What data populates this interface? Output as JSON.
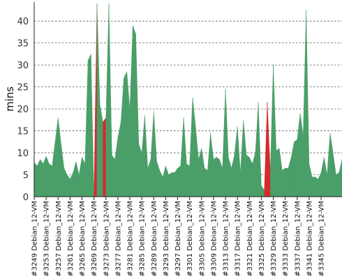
{
  "chart_data": {
    "type": "area",
    "ylabel": "mins",
    "ylim": [
      0,
      44
    ],
    "yticks": [
      0,
      5,
      10,
      15,
      20,
      25,
      30,
      35,
      40
    ],
    "grid": true,
    "colors": {
      "success": "#4a9e68",
      "failure": "#d62b2b"
    },
    "x_labels": [
      "#3249 Debian_12-VM",
      "#3253 Debian_12-VM",
      "#3257 Debian_12-VM",
      "#3261 Debian_12-VM",
      "#3265 Debian_12-VM",
      "#3269 Debian_12-VM",
      "#3273 Debian_12-VM",
      "#3277 Debian_12-VM",
      "#3281 Debian_12-VM",
      "#3285 Debian_12-VM",
      "#3289 Debian_12-VM",
      "#3293 Debian_12-VM",
      "#3297 Debian_12-VM",
      "#3301 Debian_12-VM",
      "#3305 Debian_12-VM",
      "#3309 Debian_12-VM",
      "#3313 Debian_12-VM",
      "#3317 Debian_12-VM",
      "#3321 Debian_12-VM",
      "#3325 Debian_12-VM",
      "#3329 Debian_12-VM",
      "#3333 Debian_12-VM",
      "#3337 Debian_12-VM",
      "#3341 Debian_12-VM",
      "#3345 Debian_12-VM"
    ],
    "x_start": 3249,
    "values": [
      7.8,
      7.0,
      8.5,
      7.5,
      9.2,
      7.5,
      7.0,
      12.5,
      18.0,
      12.0,
      6.5,
      5.0,
      4.0,
      5.5,
      8.0,
      5.0,
      9.0,
      7.5,
      31.0,
      32.5,
      0.5,
      50.0,
      21.0,
      17.0,
      18.0,
      50.0,
      9.5,
      8.5,
      13.5,
      17.0,
      27.0,
      28.5,
      20.0,
      39.0,
      37.0,
      12.0,
      10.0,
      18.5,
      6.5,
      8.5,
      19.5,
      8.0,
      6.0,
      4.5,
      7.0,
      5.0,
      5.5,
      5.5,
      6.5,
      7.0,
      18.0,
      7.5,
      7.0,
      22.5,
      16.0,
      8.5,
      11.0,
      6.5,
      6.0,
      14.5,
      8.5,
      9.0,
      8.5,
      6.5,
      24.5,
      9.0,
      6.5,
      9.5,
      16.0,
      5.5,
      17.5,
      9.5,
      9.0,
      7.5,
      10.0,
      21.5,
      2.5,
      1.5,
      21.5,
      6.0,
      30.0,
      10.5,
      11.0,
      6.0,
      6.5,
      6.5,
      9.0,
      12.5,
      13.0,
      19.0,
      14.0,
      42.5,
      7.5,
      4.5,
      4.5,
      4.0,
      5.5,
      9.0,
      5.0,
      14.5,
      10.0,
      5.0,
      5.5,
      8.5
    ],
    "failed_builds": [
      3269,
      3272,
      3326,
      3327
    ]
  }
}
